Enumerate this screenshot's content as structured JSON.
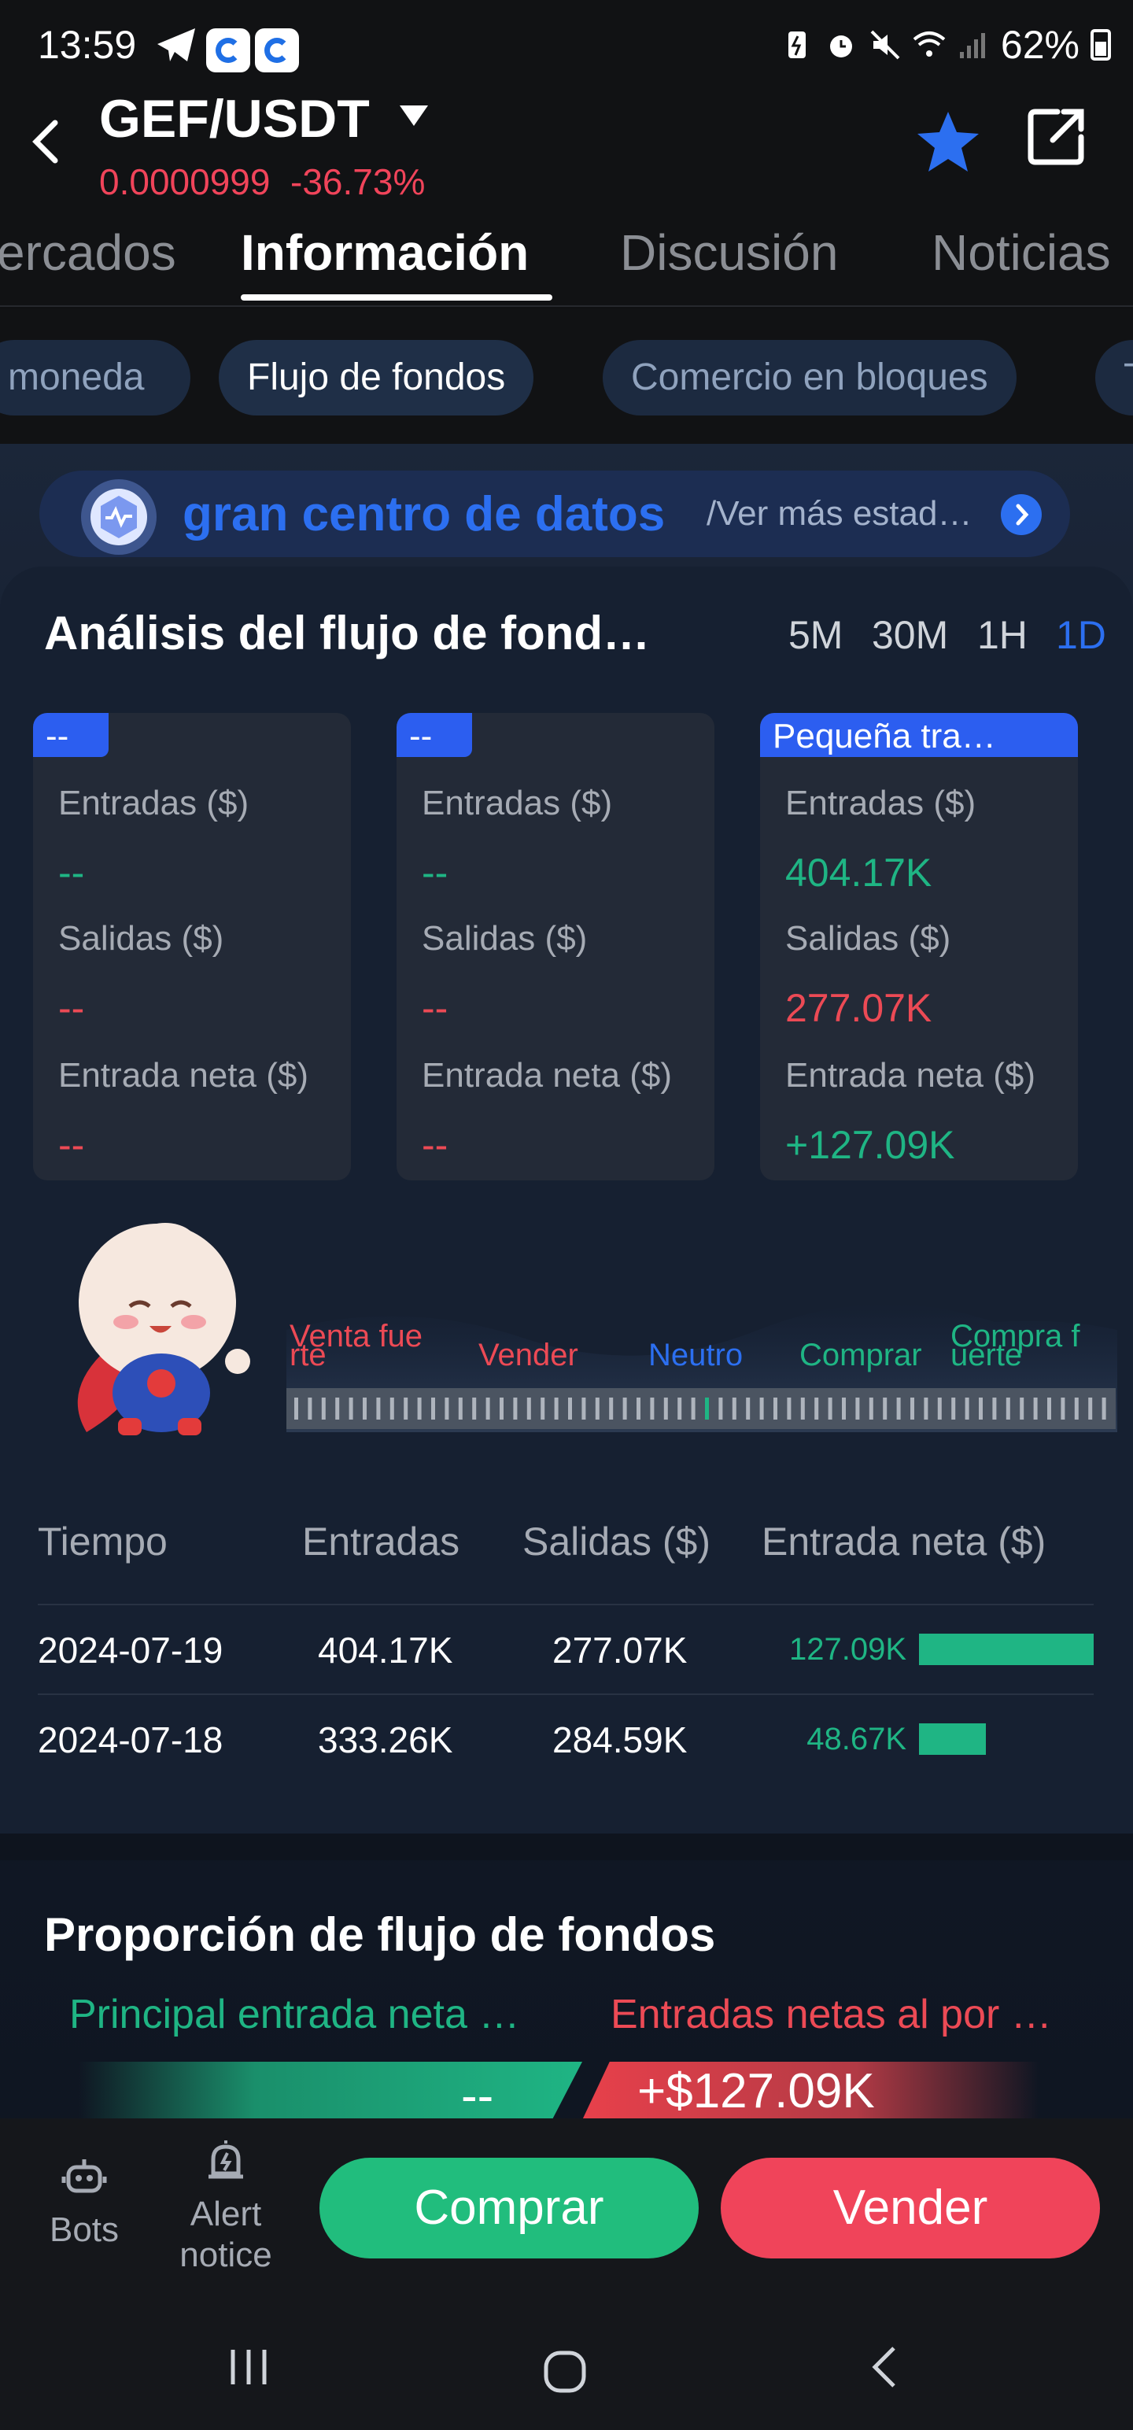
{
  "status_bar": {
    "time": "13:59",
    "battery": "62%",
    "icons": [
      "telegram-icon",
      "app-icon",
      "app-icon",
      "battery-saver-icon",
      "alarm-icon",
      "mute-icon",
      "wifi-icon",
      "signal-icon",
      "battery-icon"
    ]
  },
  "header": {
    "pair": "GEF/USDT",
    "price": "0.0000999",
    "change": "-36.73%"
  },
  "tabs": [
    "ercados",
    "Información",
    "Discusión",
    "Noticias"
  ],
  "active_tab": "Información",
  "subtabs": [
    "moneda",
    "Flujo de fondos",
    "Comercio en bloques",
    "T"
  ],
  "active_subtab": "Flujo de fondos",
  "datacenter": {
    "title": "gran centro de datos",
    "more": "/Ver más estad…"
  },
  "analysis": {
    "title": "Análisis del flujo de fond…",
    "timeframes": [
      "5M",
      "30M",
      "1H",
      "1D"
    ],
    "active_timeframe": "1D",
    "boxes": [
      {
        "tag": "--",
        "inflow_label": "Entradas ($)",
        "inflow": "--",
        "outflow_label": "Salidas ($)",
        "outflow": "--",
        "net_label": "Entrada neta ($)",
        "net": "--"
      },
      {
        "tag": "--",
        "inflow_label": "Entradas ($)",
        "inflow": "--",
        "outflow_label": "Salidas ($)",
        "outflow": "--",
        "net_label": "Entrada neta ($)",
        "net": "--"
      },
      {
        "tag": "Pequeña tra…",
        "inflow_label": "Entradas ($)",
        "inflow": "404.17K",
        "outflow_label": "Salidas ($)",
        "outflow": "277.07K",
        "net_label": "Entrada neta ($)",
        "net": "+127.09K"
      }
    ],
    "gauge": {
      "labels": [
        "Venta fue",
        "rte",
        "Vender",
        "Neutro",
        "Comprar",
        "Compra f",
        "uerte"
      ]
    },
    "table": {
      "headers": [
        "Tiempo",
        "Entradas",
        "Salidas ($)",
        "Entrada neta ($)"
      ],
      "rows": [
        {
          "date": "2024-07-19",
          "in": "404.17K",
          "out": "277.07K",
          "net": "127.09K",
          "net_value": 127.09
        },
        {
          "date": "2024-07-18",
          "in": "333.26K",
          "out": "284.59K",
          "net": "48.67K",
          "net_value": 48.67
        }
      ]
    }
  },
  "proportion": {
    "title": "Proporción de flujo de fondos",
    "left_label": "Principal entrada neta …",
    "right_label": "Entradas netas al por …",
    "left_value": "--",
    "right_value": "+$127.09K"
  },
  "bottom": {
    "bots": "Bots",
    "alert": "Alert notice",
    "buy": "Comprar",
    "sell": "Vender"
  },
  "colors": {
    "green": "#1fb584",
    "red": "#ec4a55",
    "accent": "#2c6ff0"
  }
}
